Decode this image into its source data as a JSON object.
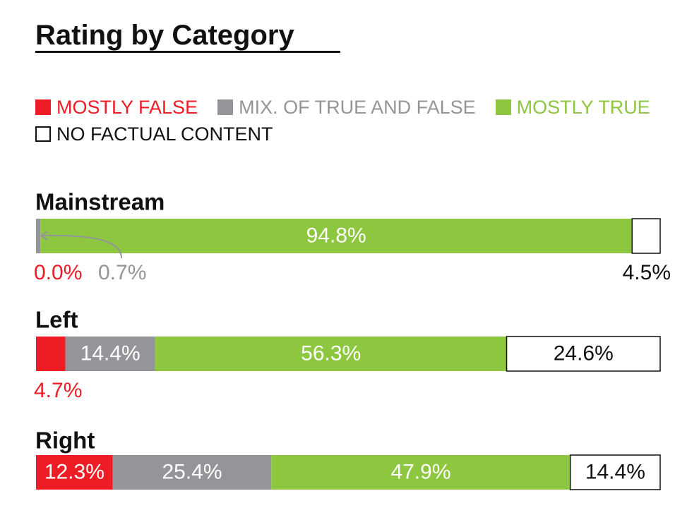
{
  "title": "Rating by Category",
  "colors": {
    "mostly_false": "#ee1c25",
    "mix": "#939598",
    "mostly_true": "#8dc63f",
    "no_factual": "#ffffff",
    "border": "#111111"
  },
  "chart_data": {
    "type": "bar",
    "stacked": true,
    "orientation": "horizontal",
    "title": "Rating by Category",
    "categories": [
      "Mainstream",
      "Left",
      "Right"
    ],
    "series": [
      {
        "name": "MOSTLY FALSE",
        "values": [
          0.0,
          4.7,
          12.3
        ],
        "color": "#ee1c25"
      },
      {
        "name": "MIX. OF TRUE AND FALSE",
        "values": [
          0.7,
          14.4,
          25.4
        ],
        "color": "#939598"
      },
      {
        "name": "MOSTLY TRUE",
        "values": [
          94.8,
          56.3,
          47.9
        ],
        "color": "#8dc63f"
      },
      {
        "name": "NO FACTUAL CONTENT",
        "values": [
          4.5,
          24.6,
          14.4
        ],
        "color": "#ffffff"
      }
    ],
    "value_labels": [
      [
        "0.0%",
        "0.7%",
        "94.8%",
        "4.5%"
      ],
      [
        "4.7%",
        "14.4%",
        "56.3%",
        "24.6%"
      ],
      [
        "12.3%",
        "25.4%",
        "47.9%",
        "14.4%"
      ]
    ],
    "xlim": [
      0,
      100
    ],
    "legend_position": "top-left"
  }
}
